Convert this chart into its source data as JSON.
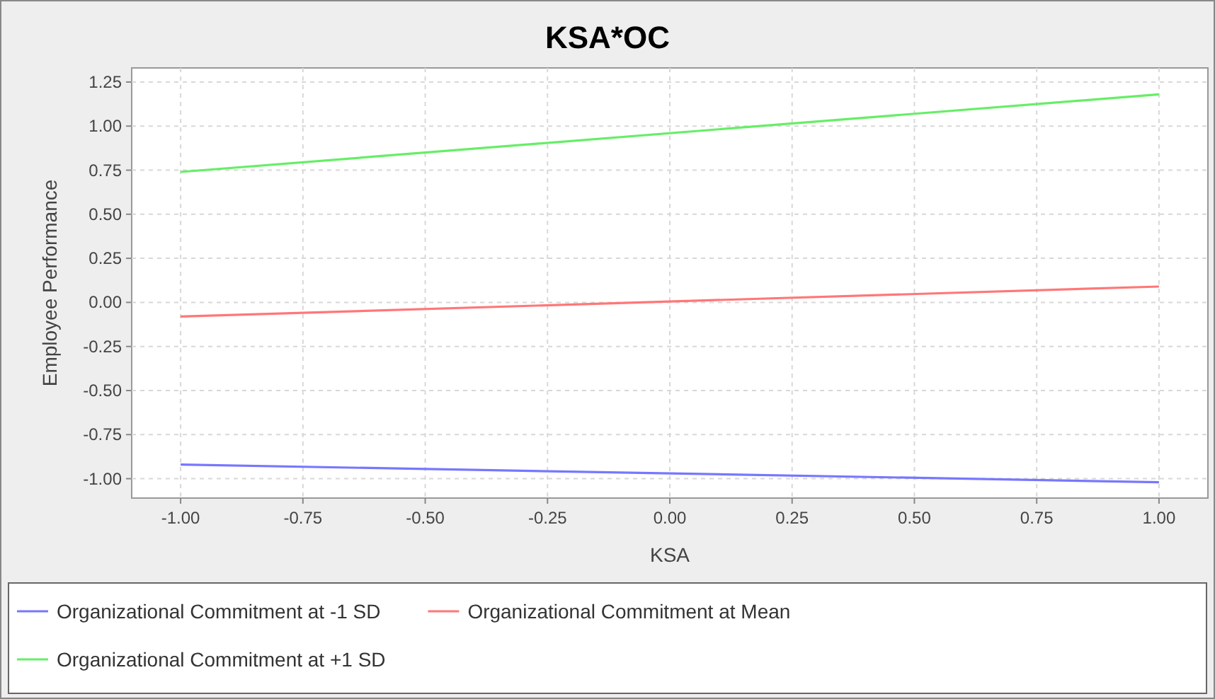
{
  "chart_data": {
    "type": "line",
    "title": "KSA*OC",
    "xlabel": "KSA",
    "ylabel": "Employee Performance",
    "x": [
      -1,
      1
    ],
    "series": [
      {
        "name": "Organizational Commitment at -1 SD",
        "color": "#7777ff",
        "values": [
          -0.92,
          -1.02
        ]
      },
      {
        "name": "Organizational Commitment at Mean",
        "color": "#ff7777",
        "values": [
          -0.08,
          0.09
        ]
      },
      {
        "name": "Organizational Commitment at +1 SD",
        "color": "#66ee66",
        "values": [
          0.74,
          1.18
        ]
      }
    ],
    "xlim": [
      -1.1,
      1.1
    ],
    "xticks": [
      {
        "value": -1,
        "label": "-1.00"
      },
      {
        "value": -0.75,
        "label": "-0.75"
      },
      {
        "value": -0.5,
        "label": "-0.50"
      },
      {
        "value": -0.25,
        "label": "-0.25"
      },
      {
        "value": 0,
        "label": "0.00"
      },
      {
        "value": 0.25,
        "label": "0.25"
      },
      {
        "value": 0.5,
        "label": "0.50"
      },
      {
        "value": 0.75,
        "label": "0.75"
      },
      {
        "value": 1,
        "label": "1.00"
      }
    ],
    "ylim": [
      -1.11,
      1.33
    ],
    "yticks": [
      {
        "value": -1,
        "label": "-1.00"
      },
      {
        "value": -0.75,
        "label": "-0.75"
      },
      {
        "value": -0.5,
        "label": "-0.50"
      },
      {
        "value": -0.25,
        "label": "-0.25"
      },
      {
        "value": 0,
        "label": "0.00"
      },
      {
        "value": 0.25,
        "label": "0.25"
      },
      {
        "value": 0.5,
        "label": "0.50"
      },
      {
        "value": 0.75,
        "label": "0.75"
      },
      {
        "value": 1,
        "label": "1.00"
      },
      {
        "value": 1.25,
        "label": "1.25"
      }
    ],
    "grid": true,
    "legend": "bottom",
    "marker": "none",
    "line_style": "solid"
  }
}
